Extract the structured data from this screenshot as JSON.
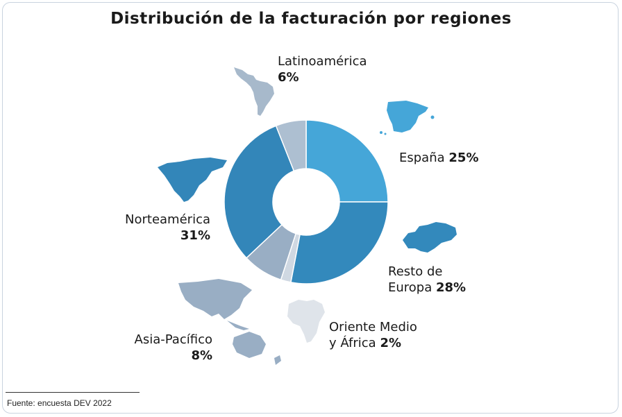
{
  "chart_data": {
    "type": "pie",
    "title": "Distribución de la facturación por regiones",
    "categories": [
      "España",
      "Resto de Europa",
      "Oriente Medio y África",
      "Asia-Pacífico",
      "Norteamérica",
      "Latinoamérica"
    ],
    "values": [
      25,
      28,
      2,
      8,
      31,
      6
    ],
    "unit": "%",
    "colors": [
      "#45a6d8",
      "#3389bc",
      "#cfd8e2",
      "#99aec4",
      "#3386b9",
      "#adbfd1"
    ],
    "legend": "around the donut, with small region maps",
    "labels": {
      "espana": {
        "name": "España",
        "value": "25%"
      },
      "resto_europa": {
        "name_line1": "Resto de",
        "name_line2": "Europa",
        "value": "28%"
      },
      "oriente_medio": {
        "name_line1": "Oriente Medio",
        "name_line2": "y África",
        "value": "2%"
      },
      "asia": {
        "name": "Asia-Pacífico",
        "value": "8%"
      },
      "norteamerica": {
        "name": "Norteamérica",
        "value": "31%"
      },
      "latinoamerica": {
        "name": "Latinoamérica",
        "value": "6%"
      }
    }
  },
  "footer": {
    "source": "Fuente: encuesta DEV 2022"
  },
  "icons": [
    "south-america-map-icon",
    "spain-map-icon",
    "europe-map-icon",
    "africa-map-icon",
    "asia-pacific-map-icon",
    "north-america-map-icon"
  ]
}
